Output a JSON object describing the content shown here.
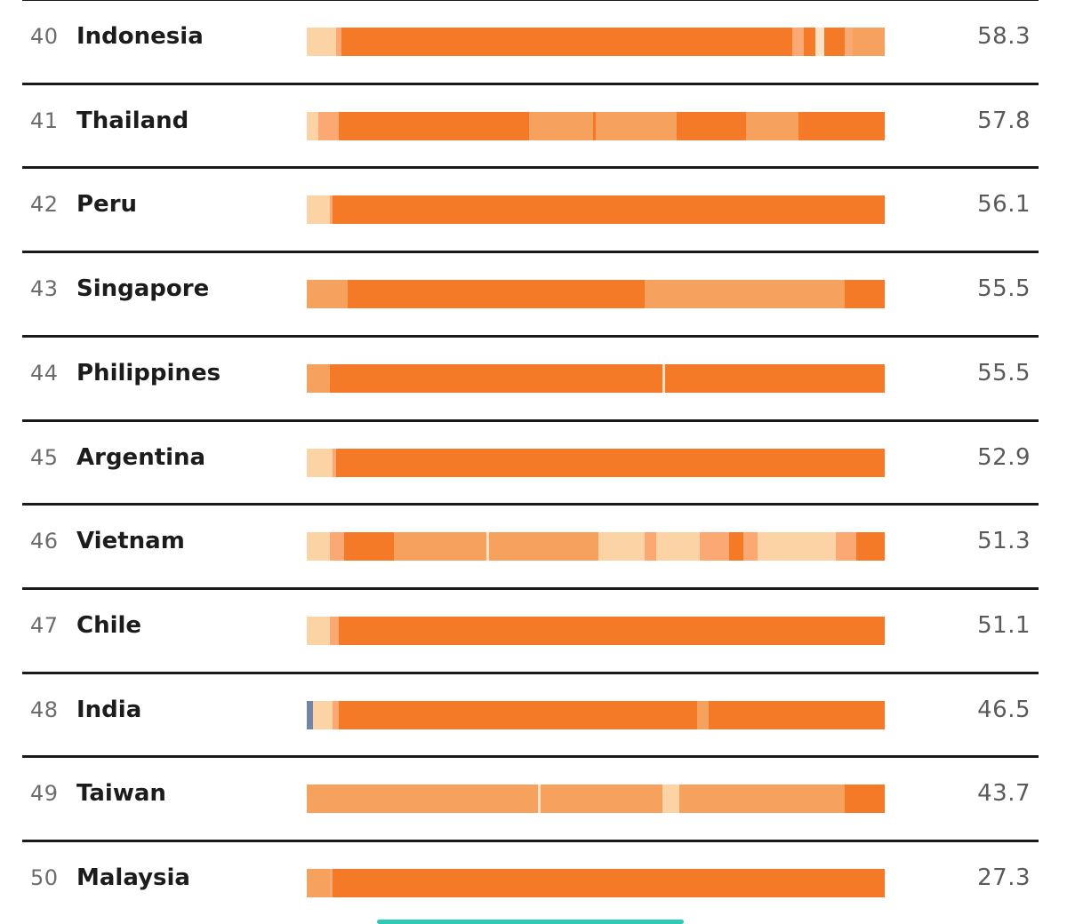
{
  "colors": {
    "shade_1": "#fcd3a4",
    "shade_2": "#fba872",
    "shade_3": "#f7a15e",
    "shade_4": "#f57a27",
    "shade_5": "#f37123",
    "divider": "#fde2c6",
    "marker": "#7284a8",
    "scrollbar": "#2ec9b7"
  },
  "chart_data": {
    "type": "bar",
    "orientation": "horizontal",
    "stacked": true,
    "title": "",
    "xlabel": "",
    "ylabel": "",
    "rows": [
      {
        "rank": "40",
        "country": "Indonesia",
        "score": "58.3",
        "segments": [
          {
            "s": 0.0,
            "e": 0.05,
            "c": "shade_1"
          },
          {
            "s": 0.05,
            "e": 0.06,
            "c": "shade_2"
          },
          {
            "s": 0.06,
            "e": 0.84,
            "c": "shade_4"
          },
          {
            "s": 0.84,
            "e": 0.86,
            "c": "shade_2"
          },
          {
            "s": 0.86,
            "e": 0.88,
            "c": "shade_4"
          },
          {
            "s": 0.88,
            "e": 0.895,
            "c": "divider"
          },
          {
            "s": 0.895,
            "e": 0.93,
            "c": "shade_4"
          },
          {
            "s": 0.93,
            "e": 0.945,
            "c": "shade_2"
          },
          {
            "s": 0.945,
            "e": 1.0,
            "c": "shade_3"
          }
        ]
      },
      {
        "rank": "41",
        "country": "Thailand",
        "score": "57.8",
        "segments": [
          {
            "s": 0.0,
            "e": 0.02,
            "c": "shade_1"
          },
          {
            "s": 0.02,
            "e": 0.055,
            "c": "shade_2"
          },
          {
            "s": 0.055,
            "e": 0.385,
            "c": "shade_4"
          },
          {
            "s": 0.385,
            "e": 0.495,
            "c": "shade_3"
          },
          {
            "s": 0.495,
            "e": 0.5,
            "c": "shade_4"
          },
          {
            "s": 0.5,
            "e": 0.64,
            "c": "shade_3"
          },
          {
            "s": 0.64,
            "e": 0.76,
            "c": "shade_4"
          },
          {
            "s": 0.76,
            "e": 0.85,
            "c": "shade_3"
          },
          {
            "s": 0.85,
            "e": 1.0,
            "c": "shade_4"
          }
        ]
      },
      {
        "rank": "42",
        "country": "Peru",
        "score": "56.1",
        "segments": [
          {
            "s": 0.0,
            "e": 0.04,
            "c": "shade_1"
          },
          {
            "s": 0.04,
            "e": 0.045,
            "c": "shade_2"
          },
          {
            "s": 0.045,
            "e": 1.0,
            "c": "shade_4"
          }
        ]
      },
      {
        "rank": "43",
        "country": "Singapore",
        "score": "55.5",
        "segments": [
          {
            "s": 0.0,
            "e": 0.07,
            "c": "shade_3"
          },
          {
            "s": 0.07,
            "e": 0.585,
            "c": "shade_4"
          },
          {
            "s": 0.585,
            "e": 0.93,
            "c": "shade_3"
          },
          {
            "s": 0.93,
            "e": 1.0,
            "c": "shade_4"
          }
        ]
      },
      {
        "rank": "44",
        "country": "Philippines",
        "score": "55.5",
        "segments": [
          {
            "s": 0.0,
            "e": 0.04,
            "c": "shade_3"
          },
          {
            "s": 0.04,
            "e": 0.615,
            "c": "shade_4"
          },
          {
            "s": 0.615,
            "e": 0.62,
            "c": "divider"
          },
          {
            "s": 0.62,
            "e": 1.0,
            "c": "shade_4"
          }
        ]
      },
      {
        "rank": "45",
        "country": "Argentina",
        "score": "52.9",
        "segments": [
          {
            "s": 0.0,
            "e": 0.045,
            "c": "shade_1"
          },
          {
            "s": 0.045,
            "e": 0.05,
            "c": "shade_2"
          },
          {
            "s": 0.05,
            "e": 1.0,
            "c": "shade_4"
          }
        ]
      },
      {
        "rank": "46",
        "country": "Vietnam",
        "score": "51.3",
        "segments": [
          {
            "s": 0.0,
            "e": 0.04,
            "c": "shade_1"
          },
          {
            "s": 0.04,
            "e": 0.065,
            "c": "shade_2"
          },
          {
            "s": 0.065,
            "e": 0.15,
            "c": "shade_4"
          },
          {
            "s": 0.15,
            "e": 0.31,
            "c": "shade_3"
          },
          {
            "s": 0.31,
            "e": 0.315,
            "c": "divider"
          },
          {
            "s": 0.315,
            "e": 0.505,
            "c": "shade_3"
          },
          {
            "s": 0.505,
            "e": 0.585,
            "c": "shade_1"
          },
          {
            "s": 0.585,
            "e": 0.605,
            "c": "shade_2"
          },
          {
            "s": 0.605,
            "e": 0.68,
            "c": "shade_1"
          },
          {
            "s": 0.68,
            "e": 0.73,
            "c": "shade_2"
          },
          {
            "s": 0.73,
            "e": 0.755,
            "c": "shade_4"
          },
          {
            "s": 0.755,
            "e": 0.78,
            "c": "shade_2"
          },
          {
            "s": 0.78,
            "e": 0.915,
            "c": "shade_1"
          },
          {
            "s": 0.915,
            "e": 0.95,
            "c": "shade_2"
          },
          {
            "s": 0.95,
            "e": 1.0,
            "c": "shade_4"
          }
        ]
      },
      {
        "rank": "47",
        "country": "Chile",
        "score": "51.1",
        "segments": [
          {
            "s": 0.0,
            "e": 0.04,
            "c": "shade_1"
          },
          {
            "s": 0.04,
            "e": 0.055,
            "c": "shade_2"
          },
          {
            "s": 0.055,
            "e": 1.0,
            "c": "shade_4"
          }
        ]
      },
      {
        "rank": "48",
        "country": "India",
        "score": "46.5",
        "segments": [
          {
            "s": 0.0,
            "e": 0.01,
            "c": "marker"
          },
          {
            "s": 0.01,
            "e": 0.045,
            "c": "shade_1"
          },
          {
            "s": 0.045,
            "e": 0.055,
            "c": "shade_2"
          },
          {
            "s": 0.055,
            "e": 0.675,
            "c": "shade_4"
          },
          {
            "s": 0.675,
            "e": 0.695,
            "c": "shade_3"
          },
          {
            "s": 0.695,
            "e": 1.0,
            "c": "shade_4"
          }
        ]
      },
      {
        "rank": "49",
        "country": "Taiwan",
        "score": "43.7",
        "segments": [
          {
            "s": 0.0,
            "e": 0.4,
            "c": "shade_3"
          },
          {
            "s": 0.4,
            "e": 0.405,
            "c": "divider"
          },
          {
            "s": 0.405,
            "e": 0.615,
            "c": "shade_3"
          },
          {
            "s": 0.615,
            "e": 0.645,
            "c": "shade_1"
          },
          {
            "s": 0.645,
            "e": 0.93,
            "c": "shade_3"
          },
          {
            "s": 0.93,
            "e": 1.0,
            "c": "shade_4"
          }
        ]
      },
      {
        "rank": "50",
        "country": "Malaysia",
        "score": "27.3",
        "segments": [
          {
            "s": 0.0,
            "e": 0.04,
            "c": "shade_3"
          },
          {
            "s": 0.04,
            "e": 0.045,
            "c": "shade_2"
          },
          {
            "s": 0.045,
            "e": 1.0,
            "c": "shade_4"
          }
        ]
      }
    ]
  }
}
